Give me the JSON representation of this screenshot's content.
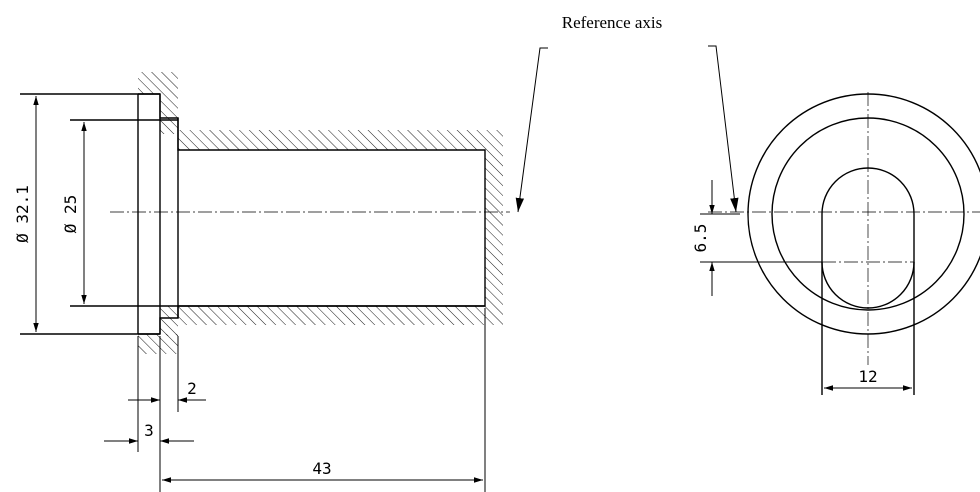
{
  "annotations": {
    "reference_axis": "Reference axis"
  },
  "dimensions": {
    "outer_diameter": "Ø 32.1",
    "inner_diameter": "Ø 25",
    "step_width": "2",
    "flange_width": "3",
    "length": "43",
    "slot_offset": "6.5",
    "slot_width": "12"
  }
}
